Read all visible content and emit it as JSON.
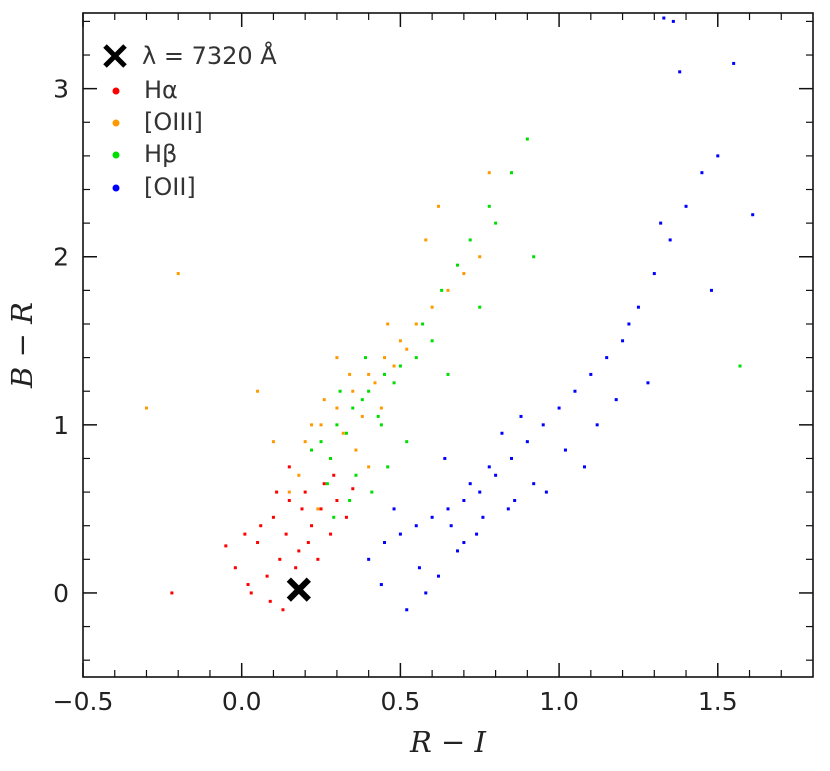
{
  "chart_data": {
    "type": "scatter",
    "xlabel": "R − I",
    "ylabel": "B − R",
    "xlim": [
      -0.5,
      1.8
    ],
    "ylim": [
      -0.5,
      3.45
    ],
    "grid": false,
    "legend_position": "top-left",
    "x_ticks": [
      -0.5,
      0.0,
      0.5,
      1.0,
      1.5
    ],
    "x_tick_labels": [
      "−0.5",
      "0.0",
      "0.5",
      "1.0",
      "1.5"
    ],
    "y_ticks": [
      0,
      1,
      2,
      3
    ],
    "y_tick_labels": [
      "0",
      "1",
      "2",
      "3"
    ],
    "marker": {
      "label": "λ = 7320 Å",
      "x": 0.18,
      "y": 0.02,
      "color": "#000000"
    },
    "series": [
      {
        "name": "Hα",
        "color": "#ff0000",
        "x": [
          0.05,
          0.1,
          0.15,
          0.2,
          0.22,
          0.25,
          0.28,
          0.18,
          0.12,
          0.08,
          0.02,
          -0.02,
          0.3,
          0.26,
          0.14,
          0.06,
          0.03,
          0.21,
          0.33,
          0.17,
          0.11,
          -0.05,
          0.24,
          0.29,
          0.09,
          0.15,
          0.19,
          0.35,
          0.01,
          0.13,
          -0.22
        ],
        "y": [
          0.3,
          0.45,
          0.55,
          0.6,
          0.4,
          0.5,
          0.35,
          0.25,
          0.2,
          0.1,
          0.05,
          0.15,
          0.55,
          0.65,
          0.35,
          0.4,
          0.0,
          0.3,
          0.45,
          0.15,
          0.6,
          0.28,
          0.2,
          0.7,
          -0.05,
          0.75,
          0.5,
          0.62,
          0.35,
          -0.1,
          0.0
        ]
      },
      {
        "name": "[OIII]",
        "color": "#ff9900",
        "x": [
          0.2,
          0.25,
          0.3,
          0.35,
          0.4,
          0.45,
          0.5,
          0.55,
          0.28,
          0.32,
          0.38,
          0.42,
          0.48,
          0.22,
          0.18,
          0.15,
          0.6,
          0.65,
          0.7,
          0.52,
          0.36,
          0.26,
          0.44,
          0.58,
          0.1,
          0.05,
          -0.3,
          -0.2,
          0.78,
          0.75,
          0.62,
          0.34,
          0.46,
          0.4,
          0.3,
          0.24
        ],
        "y": [
          0.9,
          1.0,
          1.1,
          1.2,
          1.3,
          1.4,
          1.5,
          1.6,
          0.8,
          0.95,
          1.05,
          1.25,
          1.35,
          1.0,
          0.7,
          0.6,
          1.7,
          1.8,
          1.9,
          1.45,
          0.85,
          1.15,
          1.1,
          2.1,
          0.9,
          1.2,
          1.1,
          1.9,
          2.5,
          2.0,
          2.3,
          1.3,
          1.6,
          0.75,
          1.4,
          0.5
        ]
      },
      {
        "name": "Hβ",
        "color": "#00dd00",
        "x": [
          0.25,
          0.3,
          0.35,
          0.4,
          0.45,
          0.5,
          0.55,
          0.6,
          0.28,
          0.33,
          0.38,
          0.43,
          0.48,
          0.22,
          0.36,
          0.41,
          0.52,
          0.57,
          0.63,
          0.68,
          0.72,
          0.78,
          0.85,
          0.9,
          0.31,
          0.27,
          0.46,
          0.39,
          0.65,
          0.8,
          0.92,
          0.75,
          1.57,
          0.34,
          0.29,
          0.44
        ],
        "y": [
          0.9,
          1.0,
          1.1,
          1.2,
          1.3,
          1.35,
          1.4,
          1.5,
          0.8,
          0.95,
          1.15,
          1.05,
          1.25,
          0.85,
          0.7,
          0.6,
          0.9,
          1.6,
          1.8,
          1.95,
          2.1,
          2.3,
          2.5,
          2.7,
          1.2,
          0.65,
          0.75,
          1.4,
          1.3,
          2.2,
          2.0,
          1.7,
          1.35,
          0.55,
          0.45,
          1.0
        ]
      },
      {
        "name": "[OII]",
        "color": "#0000ff",
        "x": [
          0.4,
          0.45,
          0.5,
          0.55,
          0.6,
          0.65,
          0.7,
          0.75,
          0.8,
          0.85,
          0.9,
          0.95,
          1.0,
          1.05,
          1.1,
          1.15,
          1.2,
          1.25,
          1.3,
          1.35,
          1.4,
          1.45,
          1.5,
          1.55,
          0.62,
          0.68,
          0.72,
          0.78,
          0.82,
          0.88,
          0.58,
          0.52,
          0.66,
          0.74,
          0.86,
          0.92,
          1.02,
          1.12,
          1.22,
          1.32,
          1.38,
          1.36,
          1.33,
          1.48,
          1.61,
          0.48,
          0.44,
          0.56,
          0.64,
          0.7,
          0.76,
          0.84,
          0.96,
          1.08,
          1.18,
          1.28
        ],
        "y": [
          0.2,
          0.3,
          0.35,
          0.4,
          0.45,
          0.5,
          0.55,
          0.6,
          0.7,
          0.8,
          0.9,
          1.0,
          1.1,
          1.2,
          1.3,
          1.4,
          1.5,
          1.7,
          1.9,
          2.1,
          2.3,
          2.5,
          2.6,
          3.15,
          0.1,
          0.25,
          0.65,
          0.75,
          0.95,
          1.05,
          0.0,
          -0.1,
          0.4,
          0.35,
          0.55,
          0.65,
          0.85,
          1.0,
          1.6,
          2.2,
          3.1,
          3.4,
          3.42,
          1.8,
          2.25,
          0.5,
          0.05,
          0.15,
          0.8,
          0.3,
          0.45,
          0.5,
          0.6,
          0.75,
          1.15,
          1.25
        ]
      }
    ]
  }
}
